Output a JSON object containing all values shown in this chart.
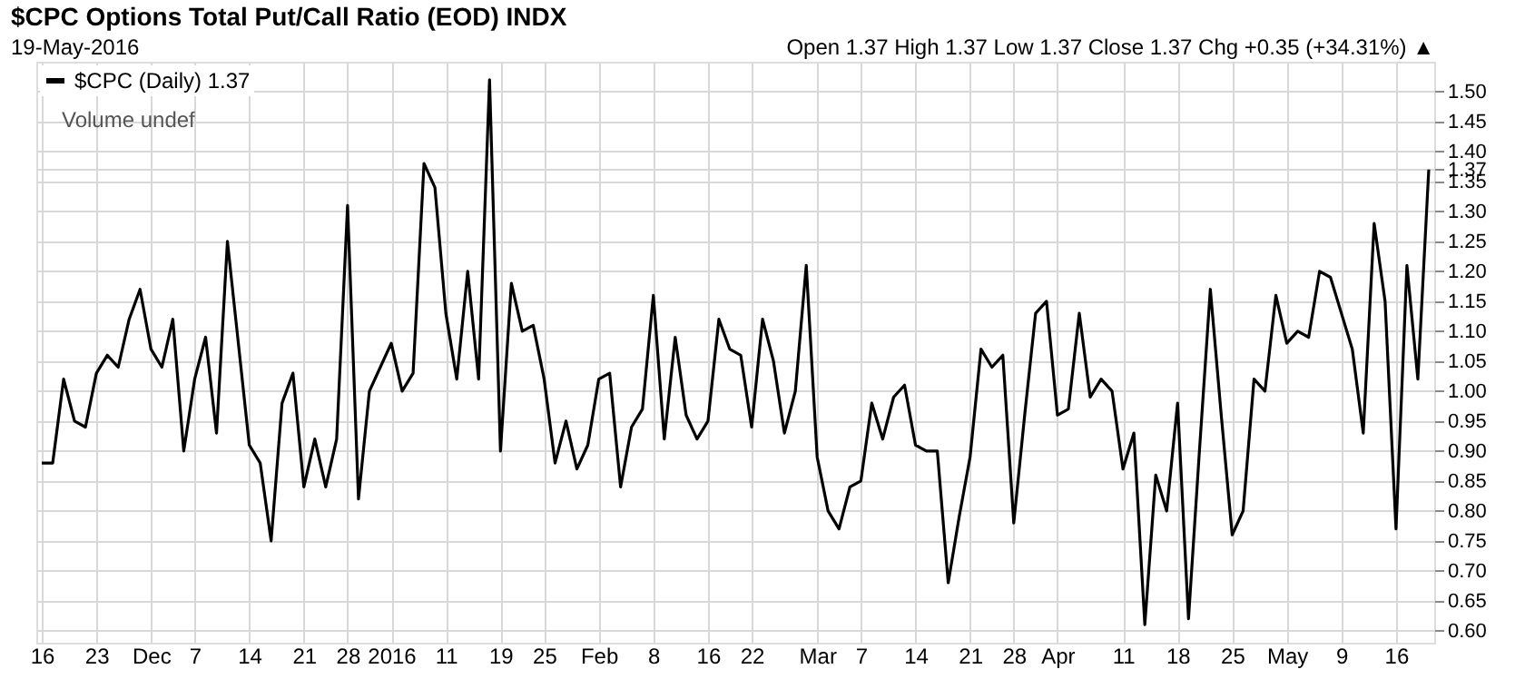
{
  "chart_data": {
    "type": "line",
    "title": "$CPC Options Total Put/Call Ratio (EOD) INDX",
    "subtitle": "19-May-2016",
    "categories": [
      "16",
      null,
      null,
      null,
      null,
      "23",
      null,
      null,
      null,
      null,
      "Dec",
      null,
      null,
      null,
      "7",
      null,
      null,
      null,
      null,
      "14",
      null,
      null,
      null,
      null,
      "21",
      null,
      null,
      null,
      "28",
      null,
      null,
      null,
      "2016",
      null,
      null,
      null,
      null,
      "11",
      null,
      null,
      null,
      null,
      "19",
      null,
      null,
      null,
      "25",
      null,
      null,
      null,
      null,
      "Feb",
      null,
      null,
      null,
      null,
      "8",
      null,
      null,
      null,
      null,
      "16",
      null,
      null,
      null,
      "22",
      null,
      null,
      null,
      null,
      null,
      "Mar",
      null,
      null,
      null,
      "7",
      null,
      null,
      null,
      null,
      "14",
      null,
      null,
      null,
      null,
      "21",
      null,
      null,
      null,
      "28",
      null,
      null,
      null,
      "Apr",
      null,
      null,
      null,
      null,
      null,
      "11",
      null,
      null,
      null,
      null,
      "18",
      null,
      null,
      null,
      null,
      "25",
      null,
      null,
      null,
      null,
      "May",
      null,
      null,
      null,
      null,
      "9",
      null,
      null,
      null,
      null,
      "16",
      null,
      null,
      null
    ],
    "series": [
      {
        "name": "$CPC (Daily) 1.37",
        "color": "#000000",
        "values": [
          0.88,
          0.88,
          1.02,
          0.95,
          0.94,
          1.03,
          1.06,
          1.04,
          1.12,
          1.17,
          1.07,
          1.04,
          1.12,
          0.9,
          1.02,
          1.09,
          0.93,
          1.25,
          1.08,
          0.91,
          0.88,
          0.75,
          0.98,
          1.03,
          0.84,
          0.92,
          0.84,
          0.92,
          1.31,
          0.82,
          1.0,
          1.04,
          1.08,
          1.0,
          1.03,
          1.38,
          1.34,
          1.13,
          1.02,
          1.2,
          1.02,
          1.52,
          0.9,
          1.18,
          1.1,
          1.11,
          1.02,
          0.88,
          0.95,
          0.87,
          0.91,
          1.02,
          1.03,
          0.84,
          0.94,
          0.97,
          1.16,
          0.92,
          1.09,
          0.96,
          0.92,
          0.95,
          1.12,
          1.07,
          1.06,
          0.94,
          1.12,
          1.05,
          0.93,
          1.0,
          1.21,
          0.89,
          0.8,
          0.77,
          0.84,
          0.85,
          0.98,
          0.92,
          0.99,
          1.01,
          0.91,
          0.9,
          0.9,
          0.68,
          0.79,
          0.89,
          1.07,
          1.04,
          1.06,
          0.78,
          0.96,
          1.13,
          1.15,
          0.96,
          0.97,
          1.13,
          0.99,
          1.02,
          1.0,
          0.87,
          0.93,
          0.61,
          0.86,
          0.8,
          0.98,
          0.62,
          0.9,
          1.17,
          0.96,
          0.76,
          0.8,
          1.02,
          1.0,
          1.16,
          1.08,
          1.1,
          1.09,
          1.2,
          1.19,
          1.13,
          1.07,
          0.93,
          1.28,
          1.15,
          0.77,
          1.21,
          1.02,
          1.37
        ]
      }
    ],
    "ylim": [
      0.58,
      1.55
    ],
    "yticks": [
      {
        "value": 0.6,
        "label": "0.60"
      },
      {
        "value": 0.65,
        "label": "0.65"
      },
      {
        "value": 0.7,
        "label": "0.70"
      },
      {
        "value": 0.75,
        "label": "0.75"
      },
      {
        "value": 0.8,
        "label": "0.80"
      },
      {
        "value": 0.85,
        "label": "0.85"
      },
      {
        "value": 0.9,
        "label": "0.90"
      },
      {
        "value": 0.95,
        "label": "0.95"
      },
      {
        "value": 1.0,
        "label": "1.00"
      },
      {
        "value": 1.05,
        "label": "1.05"
      },
      {
        "value": 1.1,
        "label": "1.10"
      },
      {
        "value": 1.15,
        "label": "1.15"
      },
      {
        "value": 1.2,
        "label": "1.20"
      },
      {
        "value": 1.25,
        "label": "1.25"
      },
      {
        "value": 1.3,
        "label": "1.30"
      },
      {
        "value": 1.35,
        "label": "1.35"
      },
      {
        "value": 1.4,
        "label": "1.40"
      },
      {
        "value": 1.45,
        "label": "1.45"
      },
      {
        "value": 1.5,
        "label": "1.50"
      },
      {
        "value": 1.37,
        "label": "1.37"
      }
    ],
    "grid": true,
    "legend": "top left",
    "marker": "none",
    "line_style": "solid",
    "annotations": [
      "Open 1.37  High 1.37  Low 1.37  Close 1.37  Chg +0.35 (+34.31%) ▲",
      "Volume undef"
    ]
  }
}
